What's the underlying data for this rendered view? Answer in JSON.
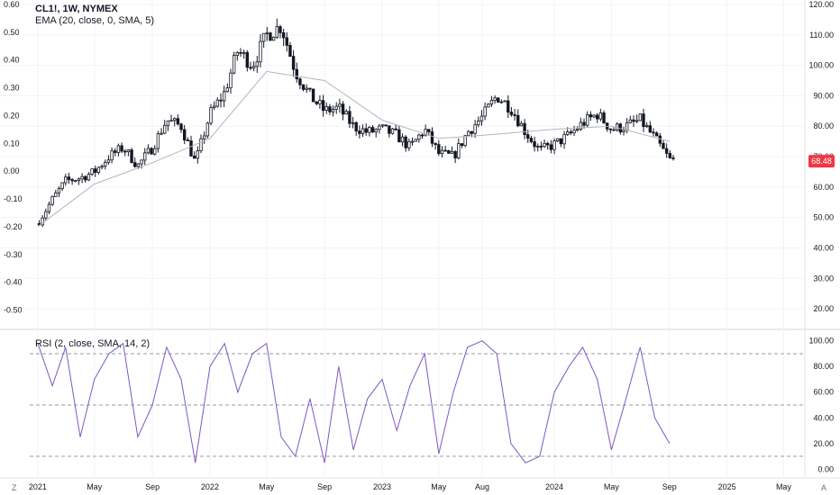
{
  "header": {
    "symbol": "CL1!, 1W, NYMEX",
    "ema_label": "EMA (20, close, 0, SMA, 5)"
  },
  "rsi_header": {
    "label": "RSI (2, close, SMA, 14, 2)"
  },
  "footer": {
    "left_button": "Z",
    "right_button": "A"
  },
  "colors": {
    "candle": "#131722",
    "ema_line": "#b2b5be",
    "rsi_line": "#7e57c2",
    "price_badge": "#f23645",
    "grid": "#f0f3fa",
    "axis_text": "#131722",
    "dash": "#787b86"
  },
  "chart_data": [
    {
      "type": "candlestick",
      "title": "CL1!, 1W, NYMEX",
      "left_axis": {
        "ticks": [
          "0.60",
          "0.50",
          "0.40",
          "0.30",
          "0.20",
          "0.10",
          "0.00",
          "-0.10",
          "-0.20",
          "-0.30",
          "-0.40",
          "-0.50"
        ],
        "range": [
          -0.55,
          0.6
        ]
      },
      "right_axis": {
        "ticks": [
          "120.00",
          "110.00",
          "100.00",
          "90.00",
          "80.00",
          "70.00",
          "60.00",
          "50.00",
          "40.00",
          "30.00",
          "20.00"
        ],
        "range": [
          15,
          120
        ]
      },
      "x_axis": {
        "tick_labels": [
          "2021",
          "May",
          "Sep",
          "2022",
          "May",
          "Sep",
          "2023",
          "May",
          "Aug",
          "2024",
          "May",
          "Sep",
          "2025",
          "May"
        ],
        "tick_dates": [
          "2021-01",
          "2021-05",
          "2021-09",
          "2022-01",
          "2022-05",
          "2022-09",
          "2023-01",
          "2023-05",
          "2023-08",
          "2024-01",
          "2024-05",
          "2024-09",
          "2025-01",
          "2025-05"
        ]
      },
      "last_price": "68.48",
      "series": [
        {
          "name": "CL1!",
          "keypoints": [
            {
              "date": "2021-01",
              "close": 48
            },
            {
              "date": "2021-02",
              "close": 56
            },
            {
              "date": "2021-03",
              "close": 62
            },
            {
              "date": "2021-04",
              "close": 63
            },
            {
              "date": "2021-05",
              "close": 65
            },
            {
              "date": "2021-06",
              "close": 70
            },
            {
              "date": "2021-07",
              "close": 73
            },
            {
              "date": "2021-08",
              "close": 67
            },
            {
              "date": "2021-09",
              "close": 73
            },
            {
              "date": "2021-10",
              "close": 82
            },
            {
              "date": "2021-11",
              "close": 80
            },
            {
              "date": "2021-12",
              "close": 68
            },
            {
              "date": "2022-01",
              "close": 84
            },
            {
              "date": "2022-02",
              "close": 91
            },
            {
              "date": "2022-03",
              "close": 105
            },
            {
              "date": "2022-04",
              "close": 100
            },
            {
              "date": "2022-05",
              "close": 110
            },
            {
              "date": "2022-06",
              "close": 113
            },
            {
              "date": "2022-07",
              "close": 98
            },
            {
              "date": "2022-08",
              "close": 90
            },
            {
              "date": "2022-09",
              "close": 85
            },
            {
              "date": "2022-10",
              "close": 86
            },
            {
              "date": "2022-11",
              "close": 80
            },
            {
              "date": "2022-12",
              "close": 78
            },
            {
              "date": "2023-01",
              "close": 79
            },
            {
              "date": "2023-02",
              "close": 77
            },
            {
              "date": "2023-03",
              "close": 73
            },
            {
              "date": "2023-04",
              "close": 79
            },
            {
              "date": "2023-05",
              "close": 71
            },
            {
              "date": "2023-06",
              "close": 70
            },
            {
              "date": "2023-07",
              "close": 78
            },
            {
              "date": "2023-08",
              "close": 83
            },
            {
              "date": "2023-09",
              "close": 90
            },
            {
              "date": "2023-10",
              "close": 86
            },
            {
              "date": "2023-11",
              "close": 78
            },
            {
              "date": "2023-12",
              "close": 72
            },
            {
              "date": "2024-01",
              "close": 74
            },
            {
              "date": "2024-02",
              "close": 77
            },
            {
              "date": "2024-03",
              "close": 81
            },
            {
              "date": "2024-04",
              "close": 84
            },
            {
              "date": "2024-05",
              "close": 79
            },
            {
              "date": "2024-06",
              "close": 80
            },
            {
              "date": "2024-07",
              "close": 82
            },
            {
              "date": "2024-08",
              "close": 76
            },
            {
              "date": "2024-09",
              "close": 69
            }
          ]
        },
        {
          "name": "EMA (20, close, 0, SMA, 5)",
          "type": "line",
          "keypoints": [
            {
              "date": "2021-01",
              "value": 47
            },
            {
              "date": "2021-05",
              "value": 61
            },
            {
              "date": "2021-09",
              "value": 68
            },
            {
              "date": "2022-01",
              "value": 76
            },
            {
              "date": "2022-05",
              "value": 98
            },
            {
              "date": "2022-09",
              "value": 95
            },
            {
              "date": "2023-01",
              "value": 82
            },
            {
              "date": "2023-05",
              "value": 76
            },
            {
              "date": "2023-08",
              "value": 77
            },
            {
              "date": "2024-01",
              "value": 79
            },
            {
              "date": "2024-05",
              "value": 80
            },
            {
              "date": "2024-09",
              "value": 75
            }
          ]
        }
      ]
    },
    {
      "type": "line",
      "title": "RSI (2, close, SMA, 14, 2)",
      "y_axis": {
        "ticks": [
          "100.00",
          "80.00",
          "60.00",
          "40.00",
          "20.00",
          "0.00"
        ],
        "range": [
          -4,
          104
        ]
      },
      "reference_lines": [
        90,
        50,
        10
      ],
      "series": [
        {
          "name": "RSI",
          "keypoints": [
            {
              "date": "2021-01",
              "value": 98
            },
            {
              "date": "2021-02",
              "value": 65
            },
            {
              "date": "2021-03",
              "value": 95
            },
            {
              "date": "2021-04",
              "value": 25
            },
            {
              "date": "2021-05",
              "value": 70
            },
            {
              "date": "2021-06",
              "value": 90
            },
            {
              "date": "2021-07",
              "value": 98
            },
            {
              "date": "2021-08",
              "value": 25
            },
            {
              "date": "2021-09",
              "value": 50
            },
            {
              "date": "2021-10",
              "value": 95
            },
            {
              "date": "2021-11",
              "value": 70
            },
            {
              "date": "2021-12",
              "value": 5
            },
            {
              "date": "2022-01",
              "value": 80
            },
            {
              "date": "2022-02",
              "value": 98
            },
            {
              "date": "2022-03",
              "value": 60
            },
            {
              "date": "2022-04",
              "value": 90
            },
            {
              "date": "2022-05",
              "value": 98
            },
            {
              "date": "2022-06",
              "value": 25
            },
            {
              "date": "2022-07",
              "value": 10
            },
            {
              "date": "2022-08",
              "value": 55
            },
            {
              "date": "2022-09",
              "value": 5
            },
            {
              "date": "2022-10",
              "value": 80
            },
            {
              "date": "2022-11",
              "value": 15
            },
            {
              "date": "2022-12",
              "value": 55
            },
            {
              "date": "2023-01",
              "value": 70
            },
            {
              "date": "2023-02",
              "value": 30
            },
            {
              "date": "2023-03",
              "value": 65
            },
            {
              "date": "2023-04",
              "value": 90
            },
            {
              "date": "2023-05",
              "value": 12
            },
            {
              "date": "2023-06",
              "value": 60
            },
            {
              "date": "2023-07",
              "value": 95
            },
            {
              "date": "2023-08",
              "value": 100
            },
            {
              "date": "2023-09",
              "value": 90
            },
            {
              "date": "2023-10",
              "value": 20
            },
            {
              "date": "2023-11",
              "value": 5
            },
            {
              "date": "2023-12",
              "value": 10
            },
            {
              "date": "2024-01",
              "value": 60
            },
            {
              "date": "2024-02",
              "value": 80
            },
            {
              "date": "2024-03",
              "value": 95
            },
            {
              "date": "2024-04",
              "value": 70
            },
            {
              "date": "2024-05",
              "value": 15
            },
            {
              "date": "2024-06",
              "value": 55
            },
            {
              "date": "2024-07",
              "value": 95
            },
            {
              "date": "2024-08",
              "value": 40
            },
            {
              "date": "2024-09",
              "value": 20
            }
          ]
        }
      ]
    }
  ]
}
